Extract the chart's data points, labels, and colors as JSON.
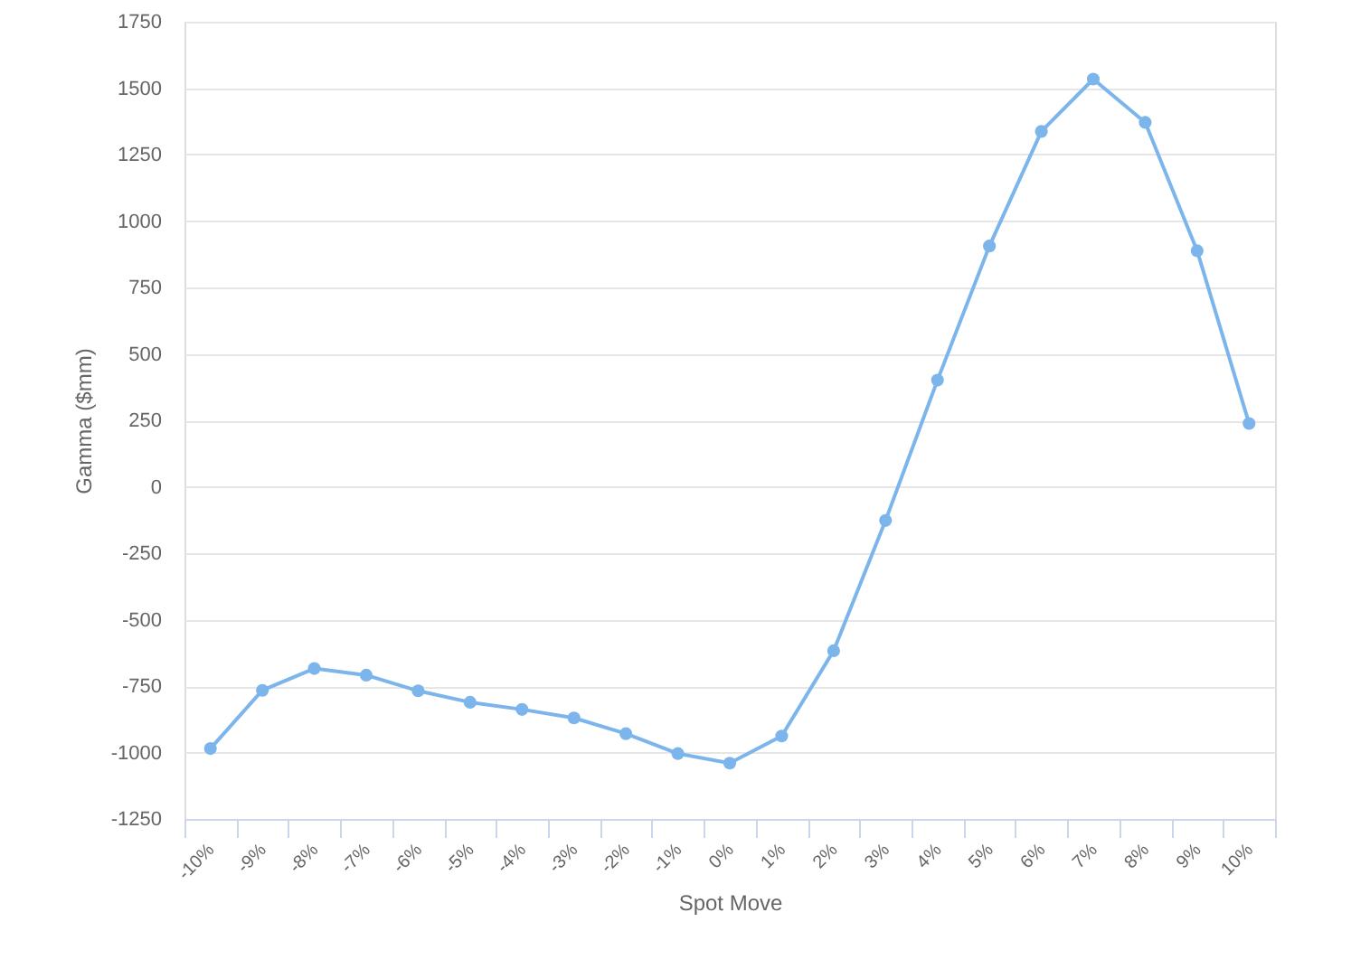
{
  "chart_data": {
    "type": "line",
    "xlabel": "Spot Move",
    "ylabel": "Gamma ($mm)",
    "categories": [
      "-10%",
      "-9%",
      "-8%",
      "-7%",
      "-6%",
      "-5%",
      "-4%",
      "-3%",
      "-2%",
      "-1%",
      "0%",
      "1%",
      "2%",
      "3%",
      "4%",
      "5%",
      "6%",
      "7%",
      "8%",
      "9%",
      "10%"
    ],
    "series": [
      {
        "color": "#7cb5ec",
        "values": [
          -985,
          -766,
          -684,
          -709,
          -768,
          -811,
          -838,
          -870,
          -929,
          -1004,
          -1040,
          -938,
          -617,
          -127,
          401,
          906,
          1337,
          1534,
          1371,
          888,
          238
        ]
      }
    ],
    "ylim": [
      -1250,
      1750
    ],
    "yticks": [
      -1250,
      -1000,
      -750,
      -500,
      -250,
      0,
      250,
      500,
      750,
      1000,
      1250,
      1500,
      1750
    ],
    "grid": "y",
    "marker": "circle",
    "line_style": "solid"
  }
}
